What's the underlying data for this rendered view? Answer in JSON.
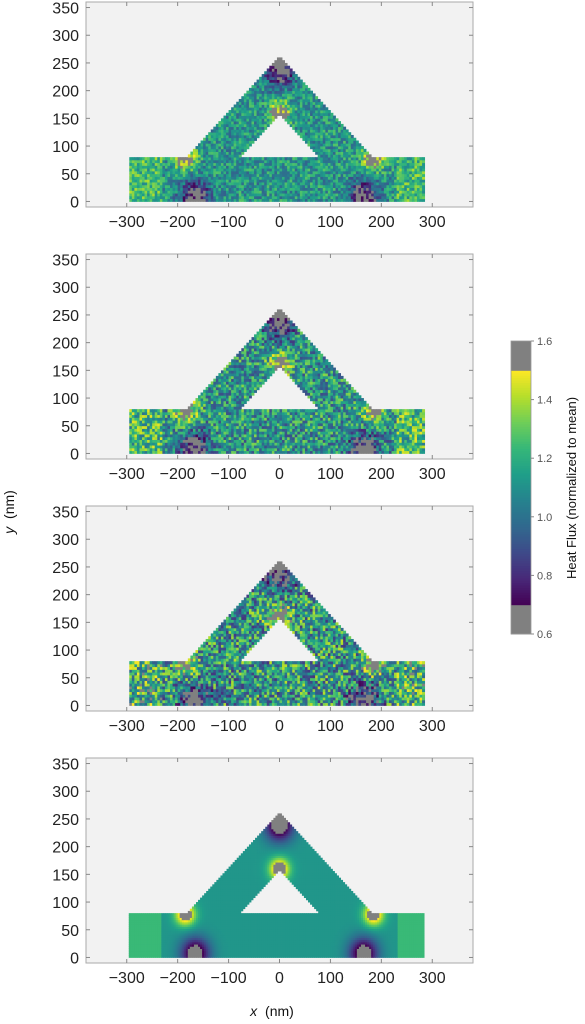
{
  "chart_data": {
    "type": "heatmap",
    "xlabel_var": "x",
    "xlabel_unit": "(nm)",
    "ylabel_var": "y",
    "ylabel_unit": "(nm)",
    "xlim": [
      -380,
      380
    ],
    "ylim": [
      -10,
      360
    ],
    "x_ticks": [
      -300,
      -200,
      -100,
      0,
      100,
      200,
      300
    ],
    "y_ticks": [
      0,
      50,
      100,
      150,
      200,
      250,
      300,
      350
    ],
    "x_tick_labels": [
      "−300",
      "−200",
      "−100",
      "0",
      "100",
      "200",
      "300"
    ],
    "y_tick_labels": [
      "0",
      "50",
      "100",
      "150",
      "200",
      "250",
      "300",
      "350"
    ],
    "colorbar": {
      "label": "Heat Flux (normalized to mean)",
      "range": [
        0.6,
        1.6
      ],
      "clip_range": [
        0.7,
        1.5
      ],
      "clip_color": "#808080",
      "ticks": [
        0.6,
        0.8,
        1.0,
        1.2,
        1.4,
        1.6
      ],
      "tick_labels": [
        "0.6",
        "0.8",
        "1.0",
        "1.2",
        "1.4",
        "1.6"
      ],
      "colormap": "viridis"
    },
    "geometry": {
      "shape": "chevron",
      "left_arm_x": [
        -295,
        -155
      ],
      "right_arm_x": [
        155,
        285
      ],
      "arm_height": 80,
      "apex": [
        0,
        262
      ],
      "inner_apex": [
        0,
        158
      ]
    },
    "panels": [
      {
        "noise": 0.17,
        "smooth": false
      },
      {
        "noise": 0.24,
        "smooth": false
      },
      {
        "noise": 0.3,
        "smooth": false
      },
      {
        "noise": 0.0,
        "smooth": true
      }
    ]
  }
}
